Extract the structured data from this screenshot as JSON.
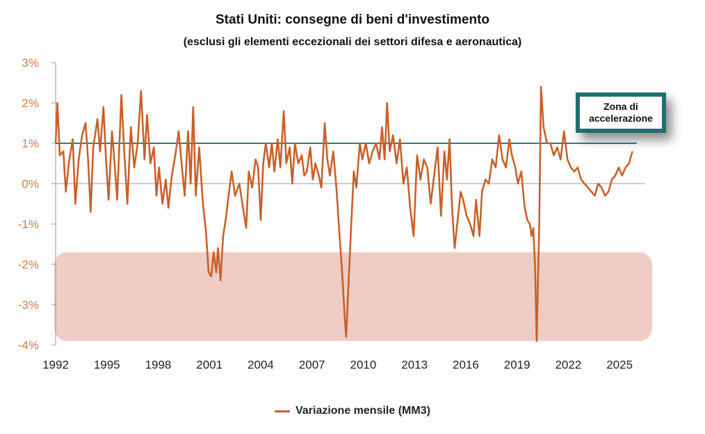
{
  "title": "Stati Uniti: consegne di beni d'investimento",
  "subtitle": "(esclusi gli elementi eccezionali dei settori difesa e aeronautica)",
  "callout": "Zona di accelerazione",
  "colors": {
    "series": "#c8602a",
    "threshold": "#2a7f7f",
    "band": "#e8b8ad",
    "axis": "#999999",
    "tick_text": "#d17a4f",
    "x_tick_text": "#222222"
  },
  "chart_data": {
    "type": "line",
    "title": "Stati Uniti: consegne di beni d'investimento",
    "subtitle": "(esclusi gli elementi eccezionali dei settori difesa e aeronautica)",
    "xlim": [
      1992,
      2026.5
    ],
    "ylim": [
      -4,
      3
    ],
    "y_ticks": [
      3,
      2,
      1,
      0,
      -1,
      -2,
      -3,
      -4
    ],
    "y_tick_labels": [
      "3%",
      "2%",
      "1%",
      "0%",
      "-1%",
      "-2%",
      "-3%",
      "-4%"
    ],
    "x_ticks": [
      1992,
      1995,
      1998,
      2001,
      2004,
      2007,
      2010,
      2013,
      2016,
      2019,
      2022,
      2025
    ],
    "x_tick_labels": [
      "1992",
      "1995",
      "1998",
      "2001",
      "2004",
      "2007",
      "2010",
      "2013",
      "2016",
      "2019",
      "2022",
      "2025"
    ],
    "reference_line": {
      "y": 1.0,
      "x_range": [
        1992,
        2026
      ]
    },
    "shaded_band": {
      "y_range": [
        -3.9,
        -1.7
      ]
    },
    "legend": "bottom-center",
    "series": [
      {
        "name": "Variazione mensile (MM3)",
        "points": [
          [
            1992.0,
            1.0
          ],
          [
            1992.1,
            2.0
          ],
          [
            1992.25,
            0.7
          ],
          [
            1992.45,
            0.8
          ],
          [
            1992.6,
            -0.2
          ],
          [
            1992.8,
            0.6
          ],
          [
            1993.0,
            1.1
          ],
          [
            1993.15,
            -0.5
          ],
          [
            1993.35,
            0.6
          ],
          [
            1993.55,
            1.2
          ],
          [
            1993.75,
            1.5
          ],
          [
            1993.9,
            0.6
          ],
          [
            1994.05,
            -0.7
          ],
          [
            1994.2,
            0.9
          ],
          [
            1994.45,
            1.6
          ],
          [
            1994.6,
            0.8
          ],
          [
            1994.8,
            1.9
          ],
          [
            1994.95,
            0.6
          ],
          [
            1995.1,
            -0.4
          ],
          [
            1995.3,
            1.3
          ],
          [
            1995.45,
            0.5
          ],
          [
            1995.6,
            -0.4
          ],
          [
            1995.85,
            2.2
          ],
          [
            1996.0,
            0.9
          ],
          [
            1996.2,
            -0.5
          ],
          [
            1996.4,
            1.4
          ],
          [
            1996.6,
            0.4
          ],
          [
            1996.8,
            1.0
          ],
          [
            1997.0,
            2.3
          ],
          [
            1997.2,
            0.6
          ],
          [
            1997.35,
            1.7
          ],
          [
            1997.55,
            0.5
          ],
          [
            1997.75,
            0.9
          ],
          [
            1997.9,
            -0.3
          ],
          [
            1998.05,
            0.4
          ],
          [
            1998.25,
            -0.5
          ],
          [
            1998.45,
            0.1
          ],
          [
            1998.6,
            -0.6
          ],
          [
            1998.8,
            0.2
          ],
          [
            1999.0,
            0.7
          ],
          [
            1999.2,
            1.3
          ],
          [
            1999.35,
            0.6
          ],
          [
            1999.55,
            -0.3
          ],
          [
            1999.75,
            1.3
          ],
          [
            1999.9,
            0.0
          ],
          [
            2000.05,
            1.9
          ],
          [
            2000.2,
            -0.3
          ],
          [
            2000.4,
            0.9
          ],
          [
            2000.6,
            -0.4
          ],
          [
            2000.8,
            -1.2
          ],
          [
            2000.95,
            -2.2
          ],
          [
            2001.1,
            -2.3
          ],
          [
            2001.25,
            -1.7
          ],
          [
            2001.4,
            -2.2
          ],
          [
            2001.5,
            -1.6
          ],
          [
            2001.65,
            -2.4
          ],
          [
            2001.8,
            -1.3
          ],
          [
            2001.95,
            -0.9
          ],
          [
            2002.15,
            -0.2
          ],
          [
            2002.3,
            0.3
          ],
          [
            2002.5,
            -0.3
          ],
          [
            2002.75,
            0.0
          ],
          [
            2003.0,
            -0.7
          ],
          [
            2003.15,
            -1.1
          ],
          [
            2003.3,
            0.3
          ],
          [
            2003.5,
            -0.1
          ],
          [
            2003.7,
            0.6
          ],
          [
            2003.85,
            0.4
          ],
          [
            2004.0,
            -0.9
          ],
          [
            2004.15,
            0.5
          ],
          [
            2004.3,
            1.0
          ],
          [
            2004.5,
            0.4
          ],
          [
            2004.65,
            1.0
          ],
          [
            2004.8,
            0.3
          ],
          [
            2005.0,
            1.1
          ],
          [
            2005.15,
            0.4
          ],
          [
            2005.35,
            1.8
          ],
          [
            2005.5,
            0.5
          ],
          [
            2005.7,
            0.9
          ],
          [
            2005.85,
            0.0
          ],
          [
            2006.0,
            1.0
          ],
          [
            2006.2,
            0.5
          ],
          [
            2006.4,
            0.7
          ],
          [
            2006.55,
            0.2
          ],
          [
            2006.7,
            0.3
          ],
          [
            2006.9,
            0.9
          ],
          [
            2007.05,
            0.1
          ],
          [
            2007.2,
            0.5
          ],
          [
            2007.4,
            0.2
          ],
          [
            2007.55,
            -0.1
          ],
          [
            2007.75,
            1.5
          ],
          [
            2007.9,
            0.6
          ],
          [
            2008.05,
            0.2
          ],
          [
            2008.25,
            0.8
          ],
          [
            2008.45,
            -0.2
          ],
          [
            2008.6,
            -1.2
          ],
          [
            2008.75,
            -2.1
          ],
          [
            2008.9,
            -3.2
          ],
          [
            2009.0,
            -3.8
          ],
          [
            2009.15,
            -2.4
          ],
          [
            2009.3,
            -1.0
          ],
          [
            2009.45,
            0.3
          ],
          [
            2009.6,
            -0.1
          ],
          [
            2009.8,
            1.0
          ],
          [
            2009.95,
            0.6
          ],
          [
            2010.15,
            1.0
          ],
          [
            2010.35,
            0.5
          ],
          [
            2010.55,
            0.8
          ],
          [
            2010.75,
            1.0
          ],
          [
            2010.95,
            0.6
          ],
          [
            2011.1,
            1.4
          ],
          [
            2011.25,
            0.6
          ],
          [
            2011.4,
            2.0
          ],
          [
            2011.55,
            0.8
          ],
          [
            2011.75,
            1.2
          ],
          [
            2011.95,
            0.5
          ],
          [
            2012.15,
            1.1
          ],
          [
            2012.35,
            0.0
          ],
          [
            2012.55,
            0.4
          ],
          [
            2012.75,
            -0.6
          ],
          [
            2012.95,
            -1.3
          ],
          [
            2013.15,
            0.7
          ],
          [
            2013.35,
            0.1
          ],
          [
            2013.55,
            0.6
          ],
          [
            2013.75,
            0.4
          ],
          [
            2013.95,
            -0.5
          ],
          [
            2014.15,
            0.2
          ],
          [
            2014.35,
            0.9
          ],
          [
            2014.55,
            -0.8
          ],
          [
            2014.75,
            0.8
          ],
          [
            2014.9,
            0.1
          ],
          [
            2015.05,
            1.1
          ],
          [
            2015.2,
            -0.6
          ],
          [
            2015.35,
            -1.6
          ],
          [
            2015.55,
            -0.8
          ],
          [
            2015.7,
            -0.2
          ],
          [
            2015.85,
            -0.4
          ],
          [
            2016.05,
            -0.8
          ],
          [
            2016.25,
            -1.0
          ],
          [
            2016.45,
            -1.3
          ],
          [
            2016.6,
            -0.4
          ],
          [
            2016.8,
            -1.3
          ],
          [
            2016.95,
            -0.2
          ],
          [
            2017.15,
            0.1
          ],
          [
            2017.35,
            0.0
          ],
          [
            2017.55,
            0.6
          ],
          [
            2017.75,
            0.4
          ],
          [
            2017.95,
            1.2
          ],
          [
            2018.15,
            0.6
          ],
          [
            2018.35,
            0.4
          ],
          [
            2018.55,
            1.1
          ],
          [
            2018.7,
            0.7
          ],
          [
            2018.9,
            0.4
          ],
          [
            2019.05,
            0.0
          ],
          [
            2019.25,
            0.3
          ],
          [
            2019.45,
            -0.6
          ],
          [
            2019.6,
            -0.9
          ],
          [
            2019.75,
            -1.0
          ],
          [
            2019.85,
            -1.3
          ],
          [
            2019.95,
            -1.1
          ],
          [
            2020.05,
            -2.0
          ],
          [
            2020.15,
            -3.9
          ],
          [
            2020.3,
            -1.0
          ],
          [
            2020.4,
            2.4
          ],
          [
            2020.55,
            1.4
          ],
          [
            2020.75,
            1.0
          ],
          [
            2020.95,
            1.0
          ],
          [
            2021.15,
            0.7
          ],
          [
            2021.35,
            0.9
          ],
          [
            2021.55,
            0.6
          ],
          [
            2021.75,
            1.3
          ],
          [
            2021.95,
            0.6
          ],
          [
            2022.15,
            0.4
          ],
          [
            2022.35,
            0.3
          ],
          [
            2022.55,
            0.4
          ],
          [
            2022.75,
            0.1
          ],
          [
            2022.95,
            0.0
          ],
          [
            2023.15,
            -0.1
          ],
          [
            2023.35,
            -0.2
          ],
          [
            2023.55,
            -0.3
          ],
          [
            2023.75,
            0.0
          ],
          [
            2023.95,
            -0.1
          ],
          [
            2024.15,
            -0.3
          ],
          [
            2024.35,
            -0.2
          ],
          [
            2024.55,
            0.1
          ],
          [
            2024.75,
            0.2
          ],
          [
            2024.95,
            0.4
          ],
          [
            2025.15,
            0.2
          ],
          [
            2025.35,
            0.4
          ],
          [
            2025.55,
            0.5
          ],
          [
            2025.75,
            0.8
          ]
        ]
      }
    ]
  }
}
